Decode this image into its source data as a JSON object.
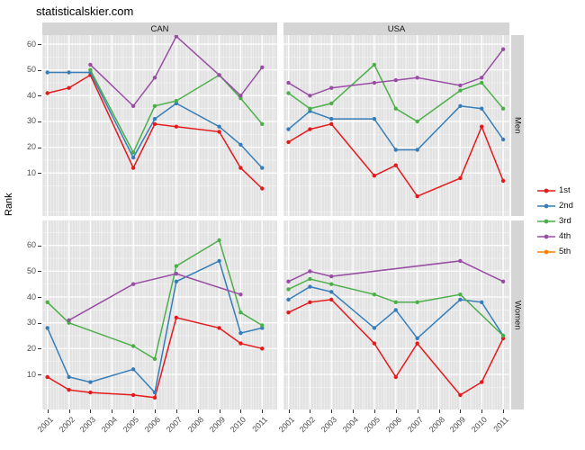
{
  "title": "statisticalskier.com",
  "chart_data": {
    "type": "line",
    "title": "statisticalskier.com",
    "ylabel": "Rank",
    "xlabel": "",
    "col_facets": [
      "CAN",
      "USA"
    ],
    "row_facets": [
      "Men",
      "Women"
    ],
    "x_ticks": [
      2001,
      2002,
      2003,
      2004,
      2005,
      2006,
      2007,
      2008,
      2009,
      2010,
      2011
    ],
    "y_ticks": [
      10,
      20,
      30,
      40,
      50,
      60
    ],
    "ylim": [
      -4,
      67
    ],
    "grid": true,
    "legend_position": "right",
    "colors": {
      "panel_bg": "#e2e2e2",
      "strip_bg": "#d5d5d5",
      "grid": "#ffffff",
      "axis_text": "#4d4d4d",
      "series_1st": "#E41A1C",
      "series_2nd": "#377EB8",
      "series_3rd": "#4DAF4A",
      "series_4th": "#984EA3",
      "series_5th": "#FF7F00"
    },
    "legend": [
      {
        "label": "1st",
        "color": "#E41A1C"
      },
      {
        "label": "2nd",
        "color": "#377EB8"
      },
      {
        "label": "3rd",
        "color": "#4DAF4A"
      },
      {
        "label": "4th",
        "color": "#984EA3"
      },
      {
        "label": "5th",
        "color": "#FF7F00"
      }
    ],
    "panels": [
      {
        "col": "CAN",
        "row": "Men",
        "series": [
          {
            "name": "1st",
            "color": "#E41A1C",
            "points": [
              [
                2001,
                41
              ],
              [
                2002,
                43
              ],
              [
                2003,
                48
              ],
              [
                2005,
                12
              ],
              [
                2006,
                29
              ],
              [
                2007,
                28
              ],
              [
                2009,
                26
              ],
              [
                2010,
                12
              ],
              [
                2011,
                4
              ]
            ]
          },
          {
            "name": "2nd",
            "color": "#377EB8",
            "points": [
              [
                2001,
                49
              ],
              [
                2002,
                49
              ],
              [
                2003,
                49
              ],
              [
                2005,
                16
              ],
              [
                2006,
                31
              ],
              [
                2007,
                37
              ],
              [
                2009,
                28
              ],
              [
                2010,
                21
              ],
              [
                2011,
                12
              ]
            ]
          },
          {
            "name": "3rd",
            "color": "#4DAF4A",
            "points": [
              [
                2003,
                50
              ],
              [
                2005,
                18
              ],
              [
                2006,
                36
              ],
              [
                2007,
                38
              ],
              [
                2009,
                48
              ],
              [
                2010,
                39
              ],
              [
                2011,
                29
              ]
            ]
          },
          {
            "name": "4th",
            "color": "#984EA3",
            "points": [
              [
                2003,
                52
              ],
              [
                2005,
                36
              ],
              [
                2006,
                47
              ],
              [
                2007,
                63
              ],
              [
                2009,
                48
              ],
              [
                2010,
                40
              ],
              [
                2011,
                51
              ]
            ]
          }
        ]
      },
      {
        "col": "USA",
        "row": "Men",
        "series": [
          {
            "name": "1st",
            "color": "#E41A1C",
            "points": [
              [
                2001,
                22
              ],
              [
                2002,
                27
              ],
              [
                2003,
                29
              ],
              [
                2005,
                9
              ],
              [
                2006,
                13
              ],
              [
                2007,
                1
              ],
              [
                2009,
                8
              ],
              [
                2010,
                28
              ],
              [
                2011,
                7
              ]
            ]
          },
          {
            "name": "2nd",
            "color": "#377EB8",
            "points": [
              [
                2001,
                27
              ],
              [
                2002,
                34
              ],
              [
                2003,
                31
              ],
              [
                2005,
                31
              ],
              [
                2006,
                19
              ],
              [
                2007,
                19
              ],
              [
                2009,
                36
              ],
              [
                2010,
                35
              ],
              [
                2011,
                23
              ]
            ]
          },
          {
            "name": "3rd",
            "color": "#4DAF4A",
            "points": [
              [
                2001,
                41
              ],
              [
                2002,
                35
              ],
              [
                2003,
                37
              ],
              [
                2005,
                52
              ],
              [
                2006,
                35
              ],
              [
                2007,
                30
              ],
              [
                2009,
                42
              ],
              [
                2010,
                45
              ],
              [
                2011,
                35
              ]
            ]
          },
          {
            "name": "4th",
            "color": "#984EA3",
            "points": [
              [
                2001,
                45
              ],
              [
                2002,
                40
              ],
              [
                2003,
                43
              ],
              [
                2005,
                45
              ],
              [
                2006,
                46
              ],
              [
                2007,
                47
              ],
              [
                2009,
                44
              ],
              [
                2010,
                47
              ],
              [
                2011,
                58
              ]
            ]
          }
        ]
      },
      {
        "col": "CAN",
        "row": "Women",
        "series": [
          {
            "name": "1st",
            "color": "#E41A1C",
            "points": [
              [
                2001,
                9
              ],
              [
                2002,
                4
              ],
              [
                2003,
                3
              ],
              [
                2005,
                2
              ],
              [
                2006,
                1
              ],
              [
                2007,
                32
              ],
              [
                2009,
                28
              ],
              [
                2010,
                22
              ],
              [
                2011,
                20
              ]
            ]
          },
          {
            "name": "2nd",
            "color": "#377EB8",
            "points": [
              [
                2001,
                28
              ],
              [
                2002,
                9
              ],
              [
                2003,
                7
              ],
              [
                2005,
                12
              ],
              [
                2006,
                3
              ],
              [
                2007,
                46
              ],
              [
                2009,
                54
              ],
              [
                2010,
                26
              ],
              [
                2011,
                28
              ]
            ]
          },
          {
            "name": "3rd",
            "color": "#4DAF4A",
            "points": [
              [
                2001,
                38
              ],
              [
                2002,
                30
              ],
              [
                2005,
                21
              ],
              [
                2006,
                16
              ],
              [
                2007,
                52
              ],
              [
                2009,
                62
              ],
              [
                2010,
                34
              ],
              [
                2011,
                29
              ]
            ]
          },
          {
            "name": "4th",
            "color": "#984EA3",
            "points": [
              [
                2002,
                31
              ],
              [
                2005,
                45
              ],
              [
                2007,
                49
              ],
              [
                2010,
                41
              ]
            ]
          }
        ]
      },
      {
        "col": "USA",
        "row": "Women",
        "series": [
          {
            "name": "1st",
            "color": "#E41A1C",
            "points": [
              [
                2001,
                34
              ],
              [
                2002,
                38
              ],
              [
                2003,
                39
              ],
              [
                2005,
                22
              ],
              [
                2006,
                9
              ],
              [
                2007,
                22
              ],
              [
                2009,
                2
              ],
              [
                2010,
                7
              ],
              [
                2011,
                24
              ]
            ]
          },
          {
            "name": "2nd",
            "color": "#377EB8",
            "points": [
              [
                2001,
                39
              ],
              [
                2002,
                44
              ],
              [
                2003,
                42
              ],
              [
                2005,
                28
              ],
              [
                2006,
                35
              ],
              [
                2007,
                24
              ],
              [
                2009,
                39
              ],
              [
                2010,
                38
              ],
              [
                2011,
                25
              ]
            ]
          },
          {
            "name": "3rd",
            "color": "#4DAF4A",
            "points": [
              [
                2001,
                43
              ],
              [
                2002,
                47
              ],
              [
                2003,
                45
              ],
              [
                2005,
                41
              ],
              [
                2006,
                38
              ],
              [
                2007,
                38
              ],
              [
                2009,
                41
              ],
              [
                2011,
                25
              ]
            ]
          },
          {
            "name": "4th",
            "color": "#984EA3",
            "points": [
              [
                2001,
                46
              ],
              [
                2002,
                50
              ],
              [
                2003,
                48
              ],
              [
                2009,
                54
              ],
              [
                2011,
                46
              ]
            ]
          }
        ]
      }
    ]
  }
}
